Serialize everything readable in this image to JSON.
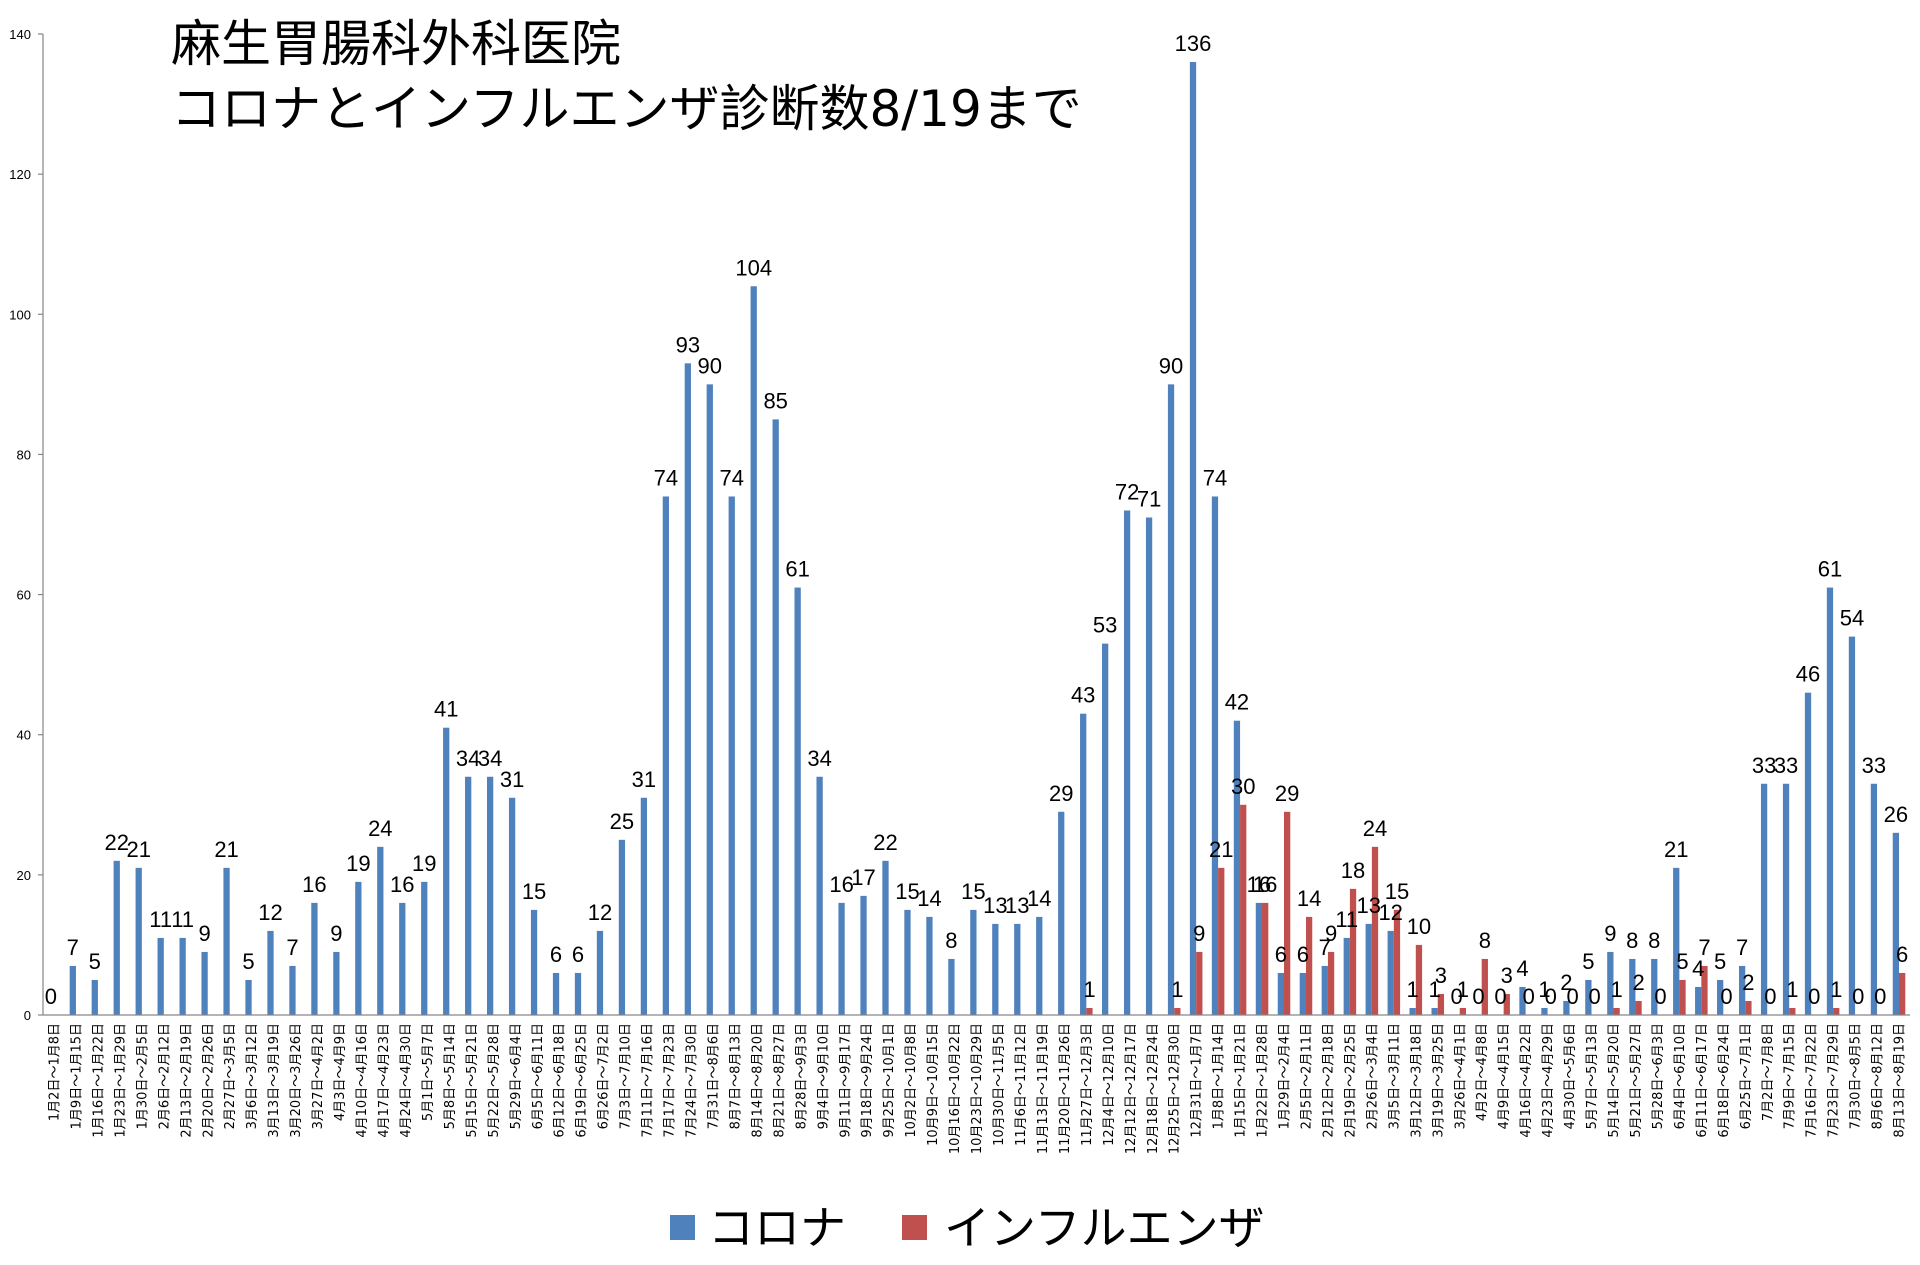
{
  "chart_data": {
    "type": "bar",
    "title": "麻生胃腸科外科医院",
    "subtitle": "コロナとインフルエンザ診断数8/19まで",
    "xlabel": "",
    "ylabel": "",
    "ylim": [
      0,
      140
    ],
    "y_ticks": [
      0,
      20,
      40,
      60,
      80,
      100,
      120,
      140
    ],
    "grid": false,
    "legend": "bottom",
    "data_labels": true,
    "axis_color": "#868686",
    "categories": [
      "1月2日～1月8日",
      "1月9日～1月15日",
      "1月16日～1月22日",
      "1月23日～1月29日",
      "1月30日～2月5日",
      "2月6日～2月12日",
      "2月13日～2月19日",
      "2月20日～2月26日",
      "2月27日～3月5日",
      "3月6日～3月12日",
      "3月13日～3月19日",
      "3月20日～3月26日",
      "3月27日～4月2日",
      "4月3日～4月9日",
      "4月10日～4月16日",
      "4月17日～4月23日",
      "4月24日～4月30日",
      "5月1日～5月7日",
      "5月8日～5月14日",
      "5月15日～5月21日",
      "5月22日～5月28日",
      "5月29日～6月4日",
      "6月5日～6月11日",
      "6月12日～6月18日",
      "6月19日～6月25日",
      "6月26日～7月2日",
      "7月3日～7月10日",
      "7月11日～7月16日",
      "7月17日～7月23日",
      "7月24日～7月30日",
      "7月31日～8月6日",
      "8月7日～8月13日",
      "8月14日～8月20日",
      "8月21日～8月27日",
      "8月28日～9月3日",
      "9月4日～9月10日",
      "9月11日～9月17日",
      "9月18日～9月24日",
      "9月25日～10月1日",
      "10月2日～10月8日",
      "10月9日～10月15日",
      "10月16日～10月22日",
      "10月23日～10月29日",
      "10月30日～11月5日",
      "11月6日～11月12日",
      "11月13日～11月19日",
      "11月20日～11月26日",
      "11月27日～12月3日",
      "12月4日～12月10日",
      "12月12日～12月17日",
      "12月18日～12月24日",
      "12月25日～12月30日",
      "12月31日～1月7日",
      "1月8日～1月14日",
      "1月15日～1月21日",
      "1月22日～1月28日",
      "1月29日～2月4日",
      "2月5日～2月11日",
      "2月12日～2月18日",
      "2月19日～2月25日",
      "2月26日～3月4日",
      "3月5日～3月11日",
      "3月12日～3月18日",
      "3月19日～3月25日",
      "3月26日～4月1日",
      "4月2日～4月8日",
      "4月9日～4月15日",
      "4月16日～4月22日",
      "4月23日～4月29日",
      "4月30日～5月6日",
      "5月7日～5月13日",
      "5月14日～5月20日",
      "5月21日～5月27日",
      "5月28日～6月3日",
      "6月4日～6月10日",
      "6月11日～6月17日",
      "6月18日～6月24日",
      "6月25日～7月1日",
      "7月2日～7月8日",
      "7月9日～7月15日",
      "7月16日～7月22日",
      "7月23日～7月29日",
      "7月30日～8月5日",
      "8月6日～8月12日",
      "8月13日～8月19日"
    ],
    "series": [
      {
        "name": "コロナ",
        "color": "#4F81BD",
        "values": [
          0,
          7,
          5,
          22,
          21,
          11,
          11,
          9,
          21,
          5,
          12,
          7,
          16,
          9,
          19,
          24,
          16,
          19,
          41,
          34,
          34,
          31,
          15,
          6,
          6,
          12,
          25,
          31,
          74,
          93,
          90,
          74,
          104,
          85,
          61,
          34,
          16,
          17,
          22,
          15,
          14,
          8,
          15,
          13,
          13,
          14,
          29,
          43,
          53,
          72,
          71,
          90,
          136,
          74,
          42,
          16,
          6,
          6,
          7,
          11,
          13,
          12,
          1,
          1,
          0,
          0,
          0,
          4,
          1,
          2,
          5,
          9,
          8,
          8,
          21,
          4,
          5,
          7,
          33,
          33,
          46,
          61,
          54,
          33,
          26
        ]
      },
      {
        "name": "インフルエンザ",
        "color": "#C0504D",
        "values": [
          null,
          null,
          null,
          null,
          null,
          null,
          null,
          null,
          null,
          null,
          null,
          null,
          null,
          null,
          null,
          null,
          null,
          null,
          null,
          null,
          null,
          null,
          null,
          null,
          null,
          null,
          null,
          null,
          null,
          null,
          null,
          null,
          null,
          null,
          null,
          null,
          null,
          null,
          null,
          null,
          null,
          null,
          null,
          null,
          null,
          null,
          null,
          1,
          null,
          null,
          null,
          1,
          9,
          21,
          30,
          16,
          29,
          14,
          9,
          18,
          24,
          15,
          10,
          3,
          1,
          8,
          3,
          0,
          0,
          0,
          0,
          1,
          2,
          0,
          5,
          7,
          0,
          2,
          0,
          1,
          0,
          1,
          0,
          0,
          6
        ]
      }
    ]
  }
}
